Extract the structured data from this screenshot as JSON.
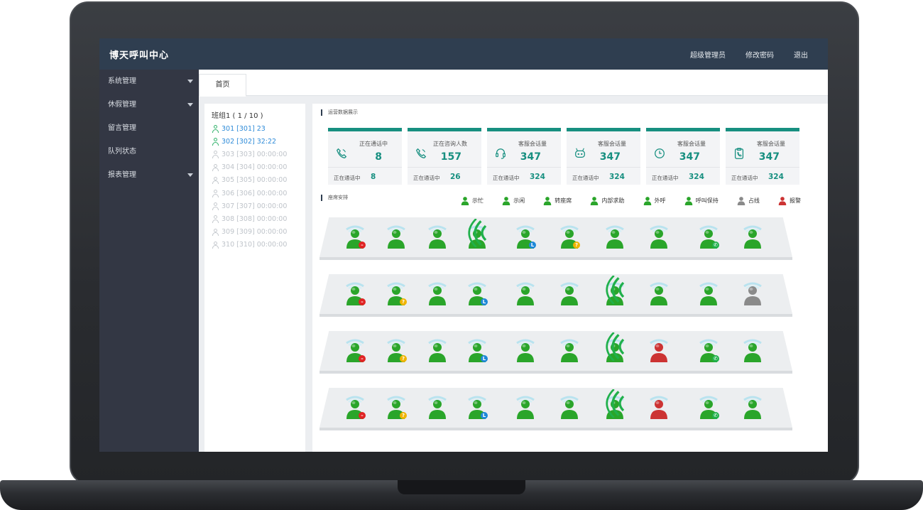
{
  "header": {
    "title": "博天呼叫中心",
    "nav": [
      "超级管理员",
      "修改密码",
      "退出"
    ]
  },
  "sidebar": {
    "items": [
      {
        "label": "系统管理",
        "caret": true
      },
      {
        "label": "休假管理",
        "caret": true
      },
      {
        "label": "留言管理",
        "caret": false
      },
      {
        "label": "队列状态",
        "caret": false
      },
      {
        "label": "报表管理",
        "caret": true
      }
    ]
  },
  "tabs": [
    {
      "label": "首页"
    }
  ],
  "group": {
    "title": "班组1 ( 1 / 10 )",
    "agents": [
      {
        "label": "301 [301] 23",
        "online": true
      },
      {
        "label": "302 [302] 32:22",
        "online": true
      },
      {
        "label": "303 [303] 00:00:00",
        "online": false
      },
      {
        "label": "304 [304] 00:00:00",
        "online": false
      },
      {
        "label": "305 [305] 00:00:00",
        "online": false
      },
      {
        "label": "306 [306] 00:00:00",
        "online": false
      },
      {
        "label": "307 [307] 00:00:00",
        "online": false
      },
      {
        "label": "308 [308] 00:00:00",
        "online": false
      },
      {
        "label": "309 [309] 00:00:00",
        "online": false
      },
      {
        "label": "310 [310] 00:00:00",
        "online": false
      }
    ]
  },
  "ops_title": "运营数据展示",
  "cards": [
    {
      "icon": "phone-icon",
      "label": "正在通话中",
      "value": "8",
      "footer_label": "正在通话中",
      "footer_value": "8"
    },
    {
      "icon": "phone-icon",
      "label": "正在咨询人数",
      "value": "157",
      "footer_label": "正在通话中",
      "footer_value": "26"
    },
    {
      "icon": "headset-icon",
      "label": "客服会话量",
      "value": "347",
      "footer_label": "正在通话中",
      "footer_value": "324"
    },
    {
      "icon": "robot-icon",
      "label": "客服会话量",
      "value": "347",
      "footer_label": "正在通话中",
      "footer_value": "324"
    },
    {
      "icon": "clock-icon",
      "label": "客服会话量",
      "value": "347",
      "footer_label": "正在通话中",
      "footer_value": "324"
    },
    {
      "icon": "clipboard-phone-icon",
      "label": "客服会话量",
      "value": "347",
      "footer_label": "正在通话中",
      "footer_value": "324"
    }
  ],
  "seating_title": "座席安排",
  "legend": [
    {
      "label": "示忙",
      "status": "busy"
    },
    {
      "label": "示闲",
      "status": "idle"
    },
    {
      "label": "转座席",
      "status": "transfer"
    },
    {
      "label": "内部求助",
      "status": "help"
    },
    {
      "label": "外呼",
      "status": "outbound"
    },
    {
      "label": "呼叫保持",
      "status": "hold"
    },
    {
      "label": "占线",
      "status": "occupied"
    },
    {
      "label": "报警",
      "status": "alarm"
    }
  ],
  "colors": {
    "header": "#2f3e50",
    "sidebar": "#333744",
    "accent": "#178f80",
    "agent_green": "#2aa52a",
    "agent_gray": "#8a8a8a",
    "agent_red": "#cc3333"
  },
  "seat_rows": [
    [
      "busy",
      "idle",
      "idle",
      "outbound",
      "transfer",
      "help",
      "idle",
      "idle",
      "hold",
      "idle"
    ],
    [
      "busy",
      "help",
      "idle",
      "transfer",
      "idle",
      "idle",
      "outbound",
      "idle",
      "idle",
      "occupied"
    ],
    [
      "busy",
      "help",
      "idle",
      "transfer",
      "idle",
      "idle",
      "outbound",
      "alarm",
      "hold",
      "idle"
    ],
    [
      "busy",
      "help",
      "idle",
      "transfer",
      "idle",
      "idle",
      "outbound",
      "alarm",
      "hold",
      "idle"
    ]
  ]
}
